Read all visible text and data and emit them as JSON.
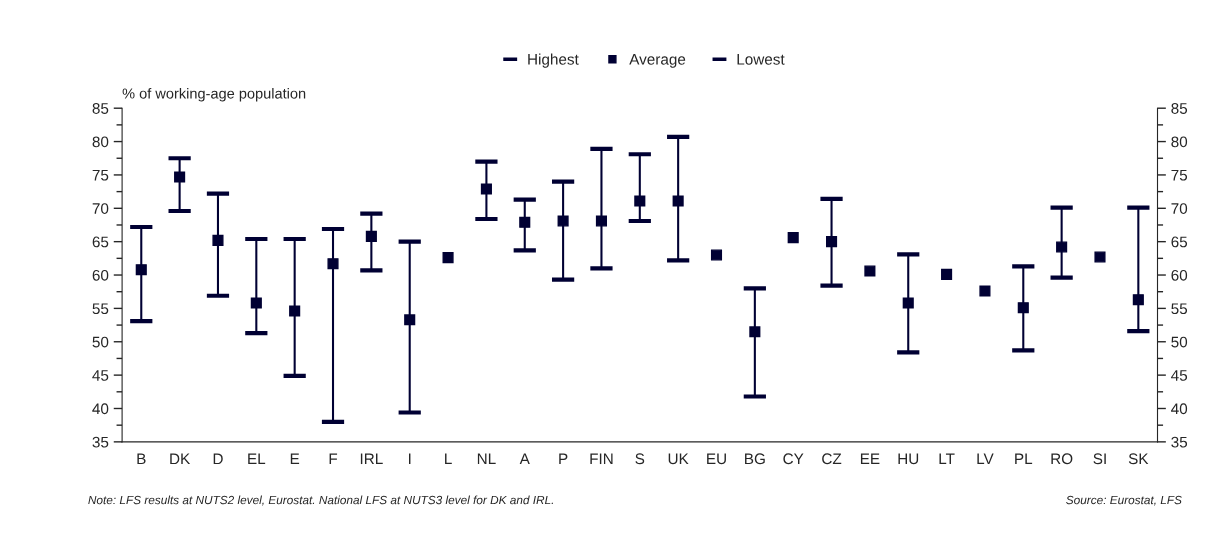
{
  "chart_data": {
    "type": "scatter",
    "ylabel": "% of working-age population",
    "categories": [
      "B",
      "DK",
      "D",
      "EL",
      "E",
      "F",
      "IRL",
      "I",
      "L",
      "NL",
      "A",
      "P",
      "FIN",
      "S",
      "UK",
      "EU",
      "BG",
      "CY",
      "CZ",
      "EE",
      "HU",
      "LT",
      "LV",
      "PL",
      "RO",
      "SI",
      "SK"
    ],
    "series": [
      {
        "name": "Average",
        "color": "#000033",
        "marker": "square",
        "values": [
          60.8,
          74.7,
          65.2,
          55.8,
          54.6,
          61.7,
          65.8,
          53.3,
          62.6,
          72.9,
          67.9,
          68.1,
          68.1,
          71.1,
          71.1,
          63.0,
          51.5,
          65.6,
          65.0,
          60.6,
          55.8,
          60.1,
          57.6,
          55.1,
          64.2,
          62.7,
          56.3
        ],
        "errors": [
          [
            53.1,
            67.2
          ],
          [
            69.6,
            77.5
          ],
          [
            56.9,
            72.2
          ],
          [
            51.3,
            65.4
          ],
          [
            44.9,
            65.4
          ],
          [
            38.0,
            66.9
          ],
          [
            60.7,
            69.2
          ],
          [
            39.4,
            65.0
          ],
          null,
          [
            68.4,
            77.0
          ],
          [
            63.7,
            71.3
          ],
          [
            59.3,
            74.0
          ],
          [
            61.0,
            78.9
          ],
          [
            68.1,
            78.1
          ],
          [
            62.2,
            80.7
          ],
          null,
          [
            41.8,
            58.0
          ],
          null,
          [
            58.4,
            71.4
          ],
          null,
          [
            48.4,
            63.1
          ],
          null,
          null,
          [
            48.7,
            61.3
          ],
          [
            59.6,
            70.1
          ],
          null,
          [
            51.6,
            70.1
          ]
        ]
      }
    ],
    "ylim": [
      35,
      85
    ],
    "yticks": [
      35,
      40,
      45,
      50,
      55,
      60,
      65,
      70,
      75,
      80,
      85
    ],
    "y2lim": [
      35,
      85
    ],
    "y2ticks": [
      35,
      40,
      45,
      50,
      55,
      60,
      65,
      70,
      75,
      80,
      85
    ],
    "grid": false,
    "legend": "top",
    "annotations": [
      "Highest",
      "Lowest",
      "Note: LFS results at NUTS2 level, Eurostat. National LFS at NUTS3 level for DK and IRL.",
      "Source: Eurostat, LFS"
    ]
  }
}
